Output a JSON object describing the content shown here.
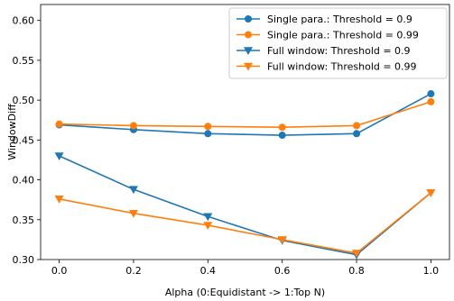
{
  "chart_data": {
    "type": "line",
    "title": "",
    "xlabel": "Alpha (0:Equidistant -> 1:Top N)",
    "ylabel": "WindowDiff",
    "x": [
      0.0,
      0.2,
      0.4,
      0.6,
      0.8,
      1.0
    ],
    "xlim": [
      -0.05,
      1.05
    ],
    "ylim": [
      0.3,
      0.62
    ],
    "xticks": [
      "0.0",
      "0.2",
      "0.4",
      "0.6",
      "0.8",
      "1.0"
    ],
    "yticks": [
      "0.30",
      "0.35",
      "0.40",
      "0.45",
      "0.50",
      "0.55",
      "0.60"
    ],
    "grid": false,
    "legend_position": "top-right",
    "series": [
      {
        "name": "Single para.: Threshold = 0.9",
        "color": "#1f77b4",
        "marker": "circle",
        "values": [
          0.469,
          0.463,
          0.458,
          0.456,
          0.458,
          0.508
        ]
      },
      {
        "name": "Single para.: Threshold = 0.99",
        "color": "#ff7f0e",
        "marker": "circle",
        "values": [
          0.47,
          0.468,
          0.467,
          0.466,
          0.468,
          0.498
        ]
      },
      {
        "name": "Full window: Threshold = 0.9",
        "color": "#1f77b4",
        "marker": "triangle-down",
        "values": [
          0.43,
          0.388,
          0.354,
          0.324,
          0.306,
          0.384
        ]
      },
      {
        "name": "Full window: Threshold = 0.99",
        "color": "#ff7f0e",
        "marker": "triangle-down",
        "values": [
          0.376,
          0.358,
          0.343,
          0.325,
          0.308,
          0.384
        ]
      }
    ]
  }
}
